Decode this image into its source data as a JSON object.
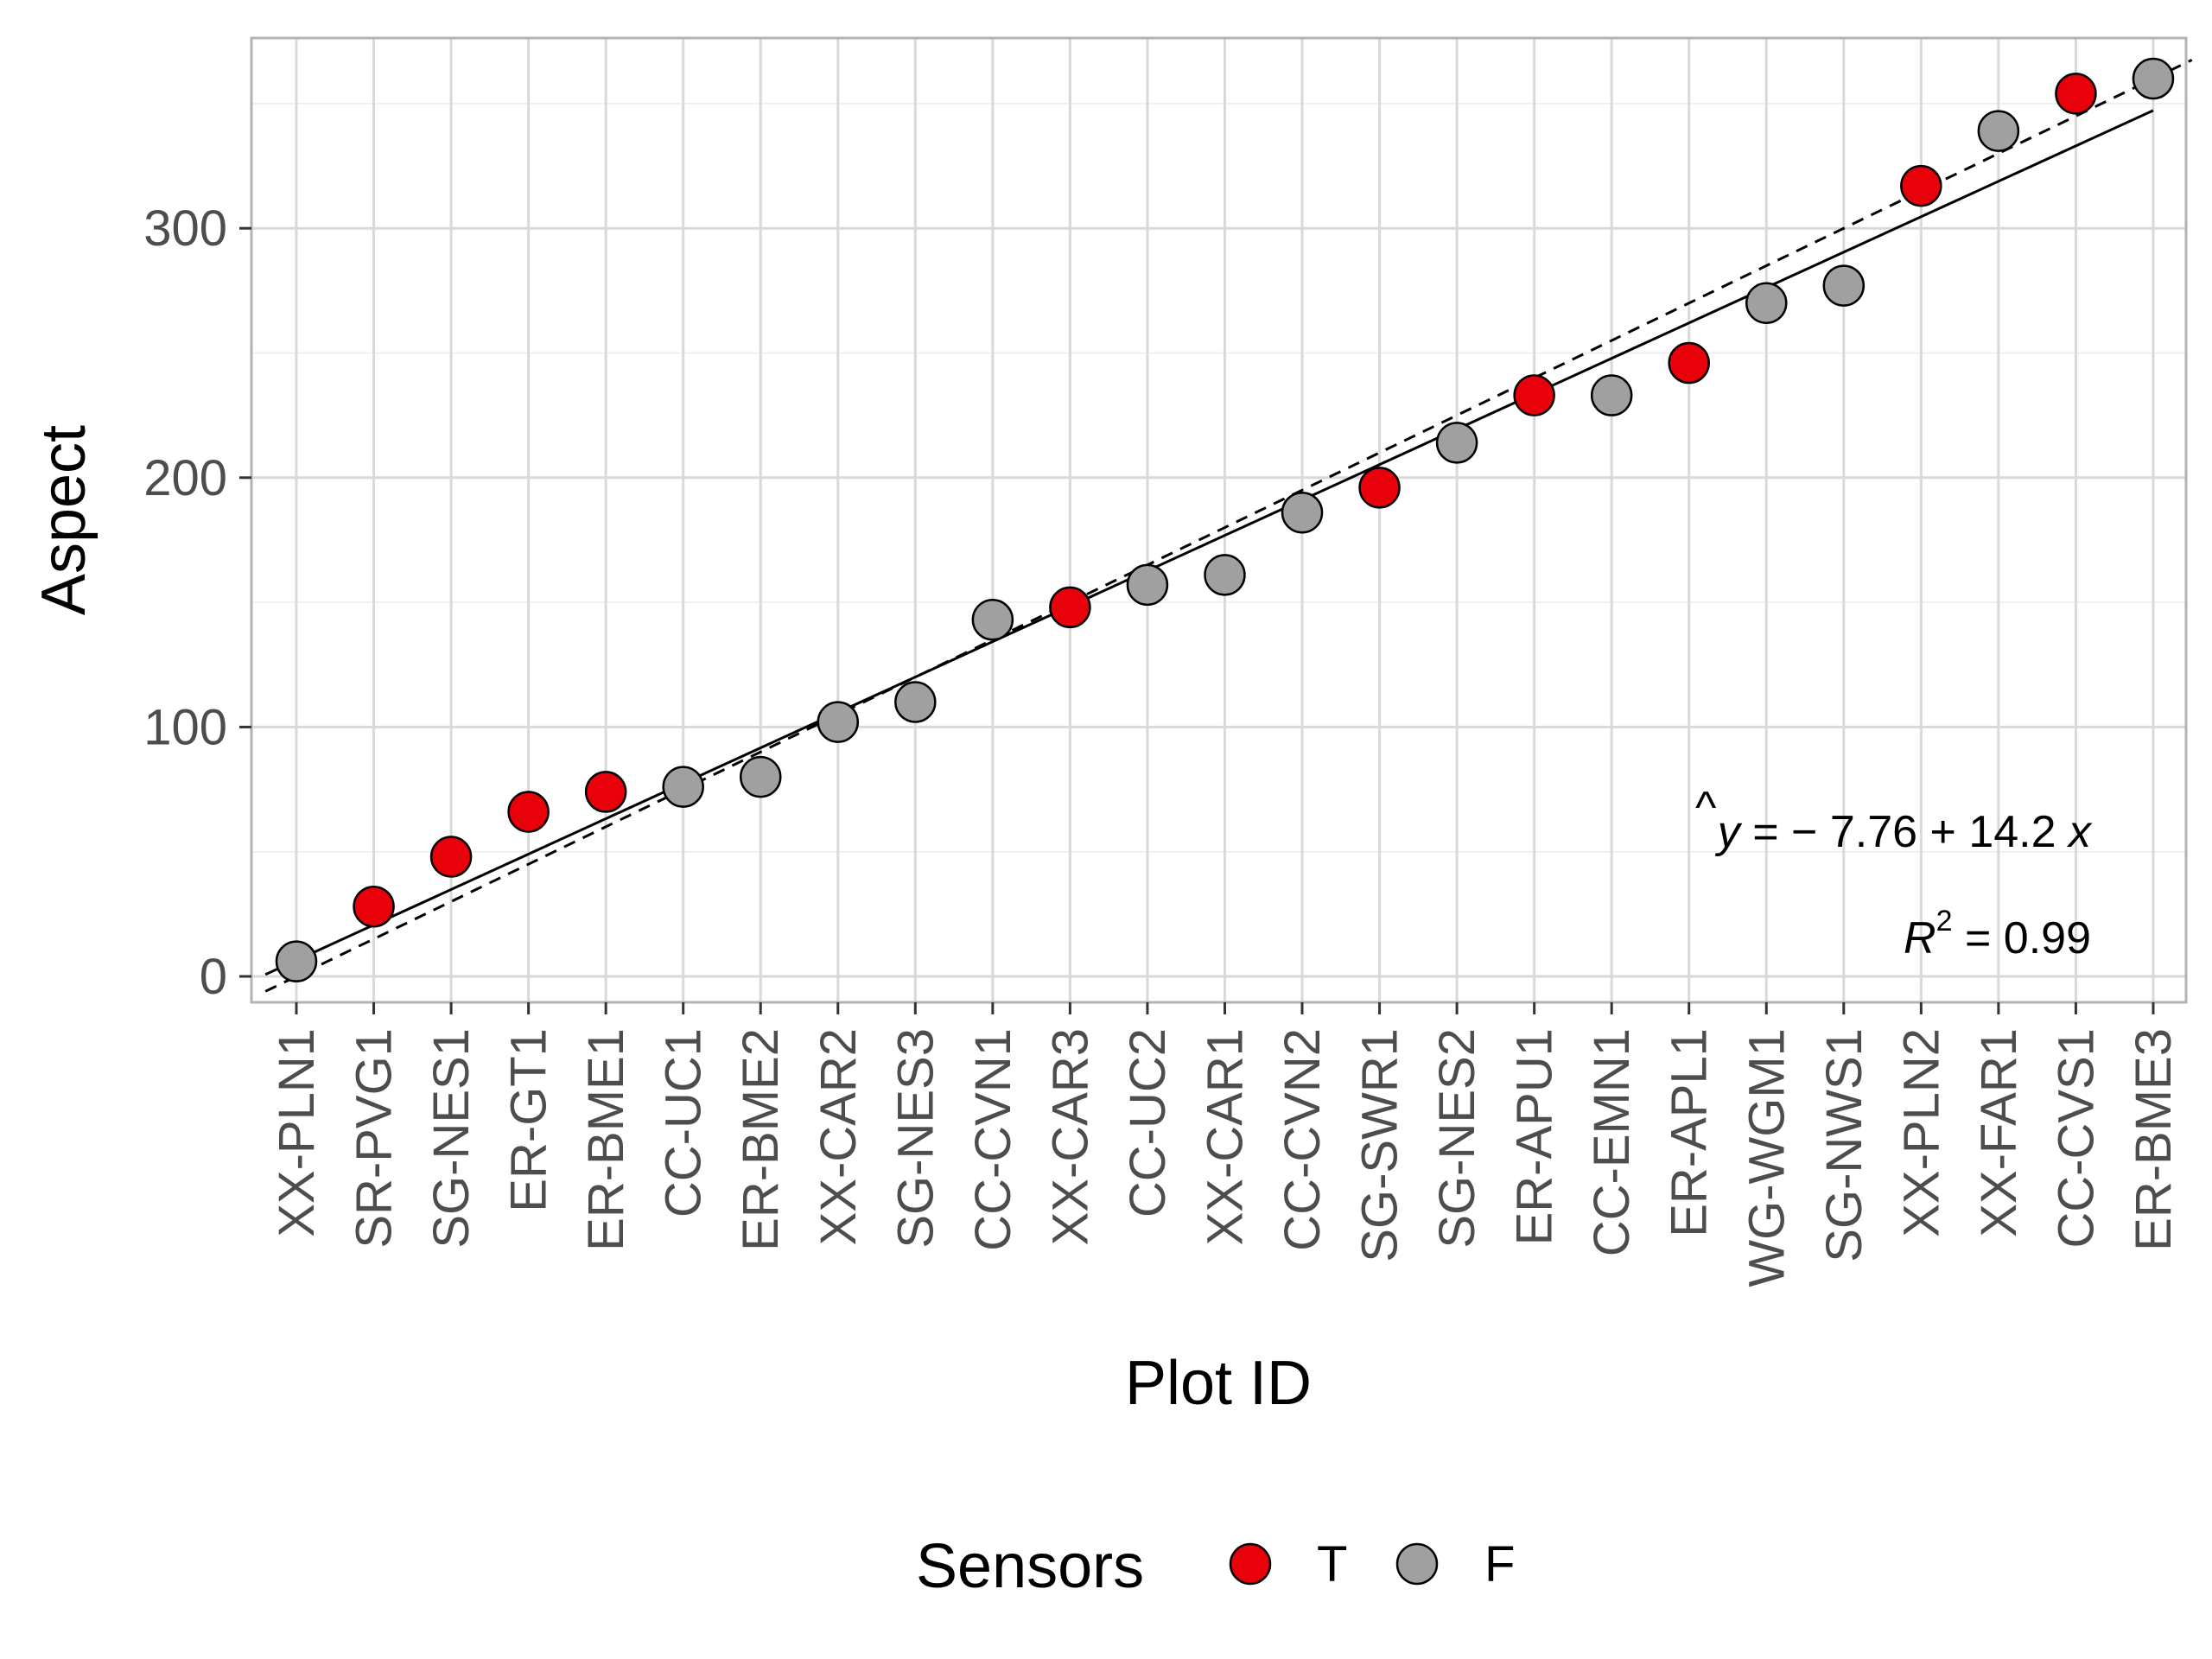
{
  "chart_data": {
    "type": "scatter",
    "xlabel": "Plot ID",
    "ylabel": "Aspect",
    "ylim": [
      -10,
      377
    ],
    "yticks": [
      0,
      100,
      200,
      300
    ],
    "grid": true,
    "legend_position": "bottom",
    "categories": [
      "XX-PLN1",
      "SR-PVG1",
      "SG-NES1",
      "ER-GT1",
      "ER-BME1",
      "CC-UC1",
      "ER-BME2",
      "XX-CAR2",
      "SG-NES3",
      "CC-CVN1",
      "XX-CAR3",
      "CC-UC2",
      "XX-CAR1",
      "CC-CVN2",
      "SG-SWR1",
      "SG-NES2",
      "ER-APU1",
      "CC-EMN1",
      "ER-APL1",
      "WG-WGM1",
      "SG-NWS1",
      "XX-PLN2",
      "XX-FAR1",
      "CC-CVS1",
      "ER-BME3"
    ],
    "values": [
      6,
      28,
      48,
      66,
      74,
      76,
      80,
      102,
      110,
      143,
      148,
      157,
      161,
      186,
      196,
      214,
      233,
      233,
      246,
      270,
      277,
      317,
      339,
      354,
      360
    ],
    "sensors": [
      "F",
      "T",
      "T",
      "T",
      "T",
      "F",
      "F",
      "F",
      "F",
      "F",
      "T",
      "F",
      "F",
      "F",
      "T",
      "F",
      "T",
      "F",
      "T",
      "F",
      "F",
      "T",
      "F",
      "T",
      "F"
    ],
    "series": [
      {
        "name": "T",
        "color": "#e8000b"
      },
      {
        "name": "F",
        "color": "#a0a0a0"
      }
    ],
    "fit_line": {
      "intercept": -7.76,
      "slope": 14.2,
      "style": "solid"
    },
    "reference_line": {
      "intercept": -15,
      "slope": 15,
      "style": "dashed"
    },
    "annotations": {
      "equation": {
        "yhat": "y",
        "rest": " = − 7.76 + 14.2 ",
        "xvar": "x"
      },
      "r2": {
        "r": "R",
        "sup": "2",
        "rest": " = 0.99"
      }
    },
    "legend_title": "Sensors"
  }
}
